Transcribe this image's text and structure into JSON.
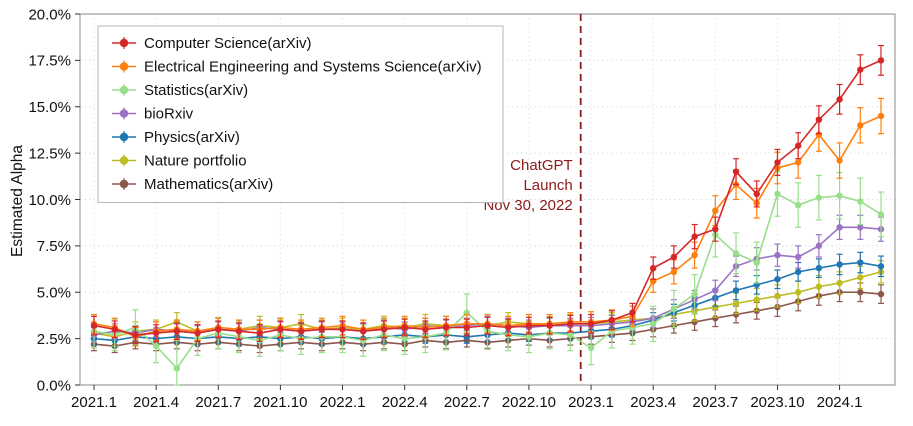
{
  "chart_data": {
    "type": "line",
    "title": "",
    "xlabel": "",
    "ylabel": "Estimated Alpha",
    "ylim": [
      0,
      20
    ],
    "yticks": [
      0,
      2.5,
      5,
      7.5,
      10,
      12.5,
      15,
      17.5,
      20
    ],
    "ytick_suffix": "%",
    "grid": true,
    "legend_position": "upper-left",
    "xtick_every": 3,
    "x": [
      "2021.1",
      "2021.2",
      "2021.3",
      "2021.4",
      "2021.5",
      "2021.6",
      "2021.7",
      "2021.8",
      "2021.9",
      "2021.10",
      "2021.11",
      "2021.12",
      "2022.1",
      "2022.2",
      "2022.3",
      "2022.4",
      "2022.5",
      "2022.6",
      "2022.7",
      "2022.8",
      "2022.9",
      "2022.10",
      "2022.11",
      "2022.12",
      "2023.1",
      "2023.2",
      "2023.3",
      "2023.4",
      "2023.5",
      "2023.6",
      "2023.7",
      "2023.8",
      "2023.9",
      "2023.10",
      "2023.11",
      "2023.12",
      "2024.1",
      "2024.2",
      "2024.3"
    ],
    "series": [
      {
        "name": "Computer Science(arXiv)",
        "color": "#d62728",
        "values": [
          3.2,
          3.0,
          2.7,
          2.8,
          2.9,
          2.8,
          3.0,
          2.9,
          2.8,
          3.0,
          2.9,
          3.0,
          3.0,
          2.9,
          3.0,
          3.1,
          3.0,
          3.1,
          3.1,
          3.2,
          3.1,
          3.2,
          3.2,
          3.3,
          3.3,
          3.5,
          3.9,
          6.3,
          6.9,
          8.0,
          8.4,
          11.5,
          10.3,
          12.0,
          12.9,
          14.3,
          15.4,
          17.0,
          17.5
        ],
        "errors": [
          0.5,
          0.45,
          0.45,
          0.45,
          0.45,
          0.45,
          0.45,
          0.45,
          0.45,
          0.45,
          0.45,
          0.45,
          0.45,
          0.45,
          0.45,
          0.45,
          0.45,
          0.45,
          0.45,
          0.45,
          0.45,
          0.45,
          0.45,
          0.45,
          0.5,
          0.5,
          0.5,
          0.6,
          0.6,
          0.65,
          0.65,
          0.7,
          0.7,
          0.7,
          0.7,
          0.75,
          0.8,
          0.8,
          0.8
        ]
      },
      {
        "name": "Electrical Engineering and Systems Science(arXiv)",
        "color": "#ff7f0e",
        "values": [
          3.3,
          3.1,
          2.6,
          2.9,
          3.0,
          2.9,
          3.1,
          3.0,
          3.0,
          3.1,
          3.0,
          3.1,
          3.2,
          3.0,
          3.1,
          3.2,
          3.1,
          3.2,
          3.3,
          3.3,
          3.2,
          3.3,
          3.3,
          3.4,
          3.4,
          3.5,
          3.7,
          5.6,
          6.1,
          7.0,
          9.4,
          10.8,
          9.8,
          11.7,
          12.0,
          13.5,
          12.1,
          14.0,
          14.5
        ],
        "errors": [
          0.5,
          0.5,
          0.5,
          0.5,
          0.5,
          0.5,
          0.5,
          0.5,
          0.5,
          0.5,
          0.5,
          0.5,
          0.5,
          0.5,
          0.5,
          0.5,
          0.5,
          0.5,
          0.5,
          0.5,
          0.5,
          0.5,
          0.5,
          0.5,
          0.55,
          0.55,
          0.55,
          0.6,
          0.65,
          0.7,
          0.8,
          0.8,
          0.8,
          0.85,
          0.85,
          0.9,
          0.95,
          0.95,
          0.95
        ]
      },
      {
        "name": "Statistics(arXiv)",
        "color": "#98df8a",
        "values": [
          2.9,
          2.7,
          3.1,
          2.1,
          0.9,
          2.5,
          2.8,
          2.6,
          2.4,
          2.7,
          2.5,
          2.6,
          2.6,
          2.4,
          2.7,
          2.5,
          2.6,
          2.8,
          3.9,
          2.9,
          2.7,
          2.6,
          2.8,
          2.7,
          2.0,
          2.9,
          3.1,
          3.3,
          4.1,
          4.9,
          8.1,
          7.1,
          6.6,
          10.3,
          9.7,
          10.1,
          10.2,
          9.9,
          9.2
        ],
        "errors": [
          0.9,
          0.85,
          0.95,
          0.9,
          1.5,
          0.9,
          0.85,
          0.85,
          0.85,
          0.85,
          0.85,
          0.85,
          0.85,
          0.85,
          0.85,
          0.85,
          0.85,
          0.9,
          1.0,
          0.9,
          0.85,
          0.85,
          0.85,
          0.85,
          0.9,
          0.9,
          0.9,
          0.95,
          1.0,
          1.05,
          1.2,
          1.1,
          1.1,
          1.2,
          1.2,
          1.2,
          1.25,
          1.25,
          1.2
        ]
      },
      {
        "name": "bioRxiv",
        "color": "#9b72c6",
        "values": [
          2.7,
          2.9,
          2.8,
          3.0,
          2.9,
          2.8,
          3.0,
          2.9,
          3.1,
          3.0,
          2.9,
          3.0,
          3.0,
          2.9,
          3.1,
          3.0,
          3.2,
          3.1,
          3.2,
          3.3,
          3.2,
          3.1,
          3.2,
          3.2,
          3.2,
          3.3,
          3.4,
          3.6,
          4.1,
          4.6,
          5.1,
          6.4,
          6.8,
          7.0,
          6.9,
          7.5,
          8.5,
          8.5,
          8.4
        ],
        "errors": [
          0.4,
          0.4,
          0.4,
          0.4,
          0.4,
          0.4,
          0.4,
          0.4,
          0.4,
          0.4,
          0.4,
          0.4,
          0.4,
          0.4,
          0.4,
          0.4,
          0.4,
          0.4,
          0.4,
          0.4,
          0.4,
          0.4,
          0.4,
          0.4,
          0.45,
          0.45,
          0.45,
          0.5,
          0.5,
          0.5,
          0.55,
          0.55,
          0.6,
          0.6,
          0.6,
          0.6,
          0.65,
          0.65,
          0.65
        ]
      },
      {
        "name": "Physics(arXiv)",
        "color": "#1f77b4",
        "values": [
          2.5,
          2.4,
          2.6,
          2.5,
          2.6,
          2.5,
          2.6,
          2.5,
          2.6,
          2.5,
          2.6,
          2.5,
          2.6,
          2.5,
          2.6,
          2.7,
          2.6,
          2.7,
          2.6,
          2.7,
          2.8,
          2.7,
          2.8,
          2.8,
          2.9,
          3.0,
          3.2,
          3.5,
          3.9,
          4.3,
          4.7,
          5.1,
          5.4,
          5.7,
          6.1,
          6.3,
          6.5,
          6.6,
          6.4
        ],
        "errors": [
          0.35,
          0.35,
          0.35,
          0.35,
          0.35,
          0.35,
          0.35,
          0.35,
          0.35,
          0.35,
          0.35,
          0.35,
          0.35,
          0.35,
          0.35,
          0.35,
          0.35,
          0.35,
          0.35,
          0.35,
          0.35,
          0.35,
          0.35,
          0.35,
          0.4,
          0.4,
          0.4,
          0.4,
          0.45,
          0.45,
          0.45,
          0.5,
          0.5,
          0.5,
          0.5,
          0.5,
          0.55,
          0.55,
          0.55
        ]
      },
      {
        "name": "Nature portfolio",
        "color": "#bcbd22",
        "values": [
          2.8,
          2.6,
          2.9,
          3.0,
          3.4,
          2.9,
          3.1,
          3.0,
          3.2,
          3.1,
          3.3,
          3.0,
          3.1,
          3.0,
          3.2,
          3.1,
          3.3,
          3.2,
          3.3,
          3.2,
          3.4,
          3.3,
          3.2,
          3.3,
          3.3,
          3.4,
          3.5,
          3.6,
          3.8,
          4.0,
          4.2,
          4.4,
          4.6,
          4.8,
          5.0,
          5.3,
          5.5,
          5.8,
          6.1
        ],
        "errors": [
          0.5,
          0.5,
          0.5,
          0.5,
          0.5,
          0.5,
          0.5,
          0.5,
          0.5,
          0.5,
          0.5,
          0.5,
          0.5,
          0.5,
          0.5,
          0.5,
          0.5,
          0.5,
          0.5,
          0.5,
          0.5,
          0.5,
          0.5,
          0.5,
          0.5,
          0.5,
          0.5,
          0.5,
          0.55,
          0.55,
          0.55,
          0.55,
          0.6,
          0.6,
          0.6,
          0.6,
          0.6,
          0.6,
          0.6
        ]
      },
      {
        "name": "Mathematics(arXiv)",
        "color": "#8c564b",
        "values": [
          2.2,
          2.1,
          2.3,
          2.2,
          2.3,
          2.2,
          2.3,
          2.2,
          2.1,
          2.2,
          2.3,
          2.2,
          2.3,
          2.2,
          2.3,
          2.2,
          2.4,
          2.3,
          2.4,
          2.3,
          2.4,
          2.5,
          2.4,
          2.5,
          2.6,
          2.7,
          2.8,
          3.0,
          3.2,
          3.4,
          3.6,
          3.8,
          4.0,
          4.2,
          4.5,
          4.8,
          5.0,
          5.0,
          4.9
        ],
        "errors": [
          0.35,
          0.35,
          0.35,
          0.35,
          0.35,
          0.35,
          0.35,
          0.35,
          0.35,
          0.35,
          0.35,
          0.35,
          0.35,
          0.35,
          0.35,
          0.35,
          0.35,
          0.35,
          0.35,
          0.35,
          0.35,
          0.35,
          0.35,
          0.35,
          0.4,
          0.4,
          0.4,
          0.4,
          0.4,
          0.45,
          0.45,
          0.45,
          0.45,
          0.5,
          0.5,
          0.5,
          0.5,
          0.5,
          0.5
        ]
      }
    ],
    "vline": {
      "x_label": "2022.12",
      "offset": 0.5,
      "color": "#8b1a1a",
      "style": "dashed"
    },
    "annotation": {
      "lines": [
        "ChatGPT",
        "Launch",
        "Nov 30, 2022"
      ],
      "color": "#8b1a1a",
      "anchor_value": 11.6
    }
  }
}
